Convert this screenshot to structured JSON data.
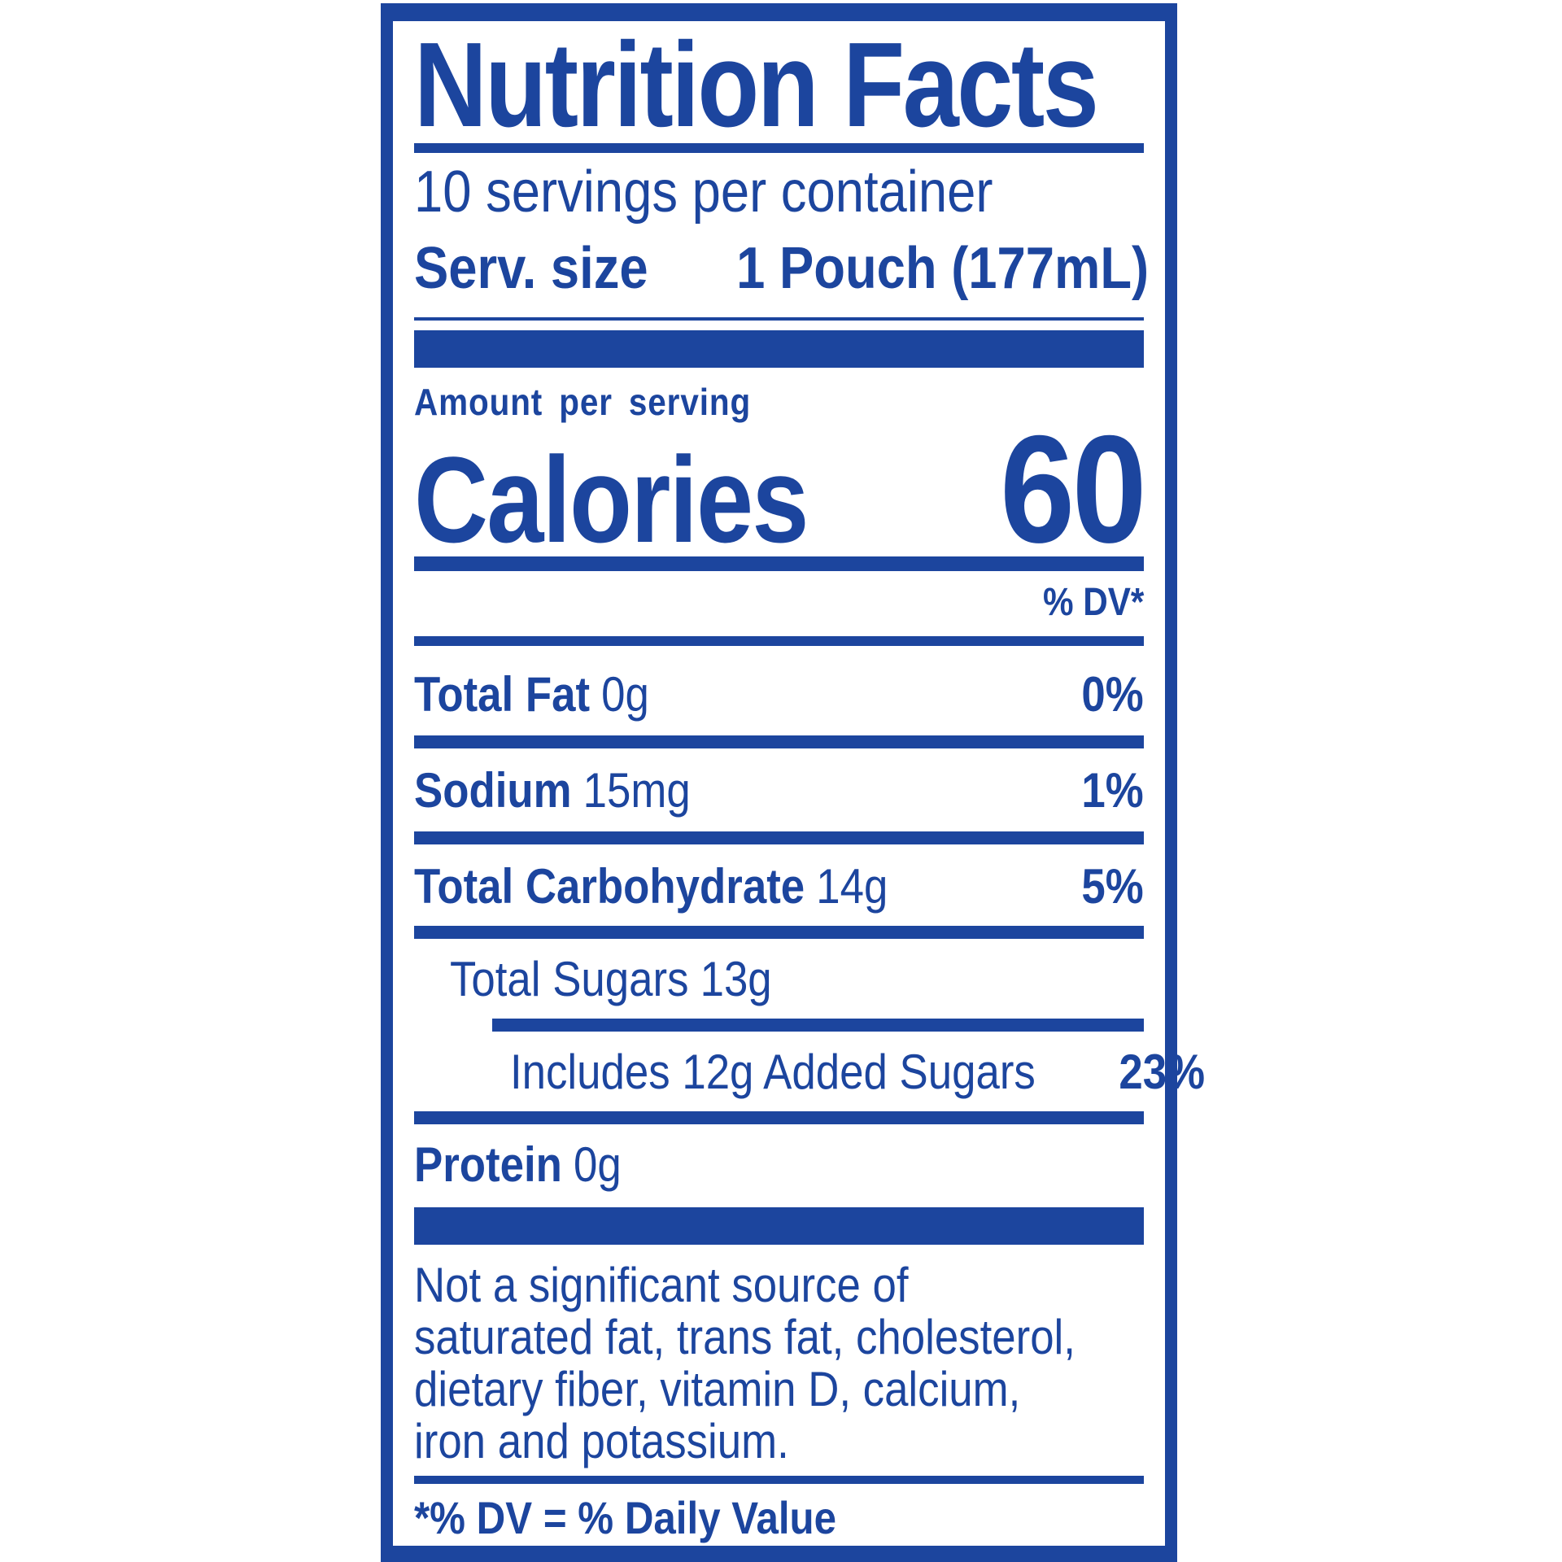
{
  "colors": {
    "brand_blue": "#1C459E",
    "background": "#FFFFFF"
  },
  "label": {
    "title": "Nutrition Facts",
    "servings_per_container": "10 servings per container",
    "serving_size_label": "Serv. size",
    "serving_size_value": "1 Pouch (177mL)",
    "amount_per_serving_label": "Amount per serving",
    "calories_label": "Calories",
    "calories_value": "60",
    "daily_value_header": "% DV*",
    "nutrients": [
      {
        "name": "Total Fat",
        "amount": "0g",
        "daily_value": "0%"
      },
      {
        "name": "Sodium",
        "amount": "15mg",
        "daily_value": "1%"
      },
      {
        "name": "Total Carbohydrate",
        "amount": "14g",
        "daily_value": "5%"
      },
      {
        "name": "Total Sugars",
        "amount": "13g",
        "daily_value": ""
      },
      {
        "name": "Includes 12g Added Sugars",
        "amount": "",
        "daily_value": "23%"
      },
      {
        "name": "Protein",
        "amount": "0g",
        "daily_value": ""
      }
    ],
    "disclaimer_lines": [
      "Not a significant source of",
      "saturated fat, trans fat, cholesterol,",
      "dietary fiber, vitamin D, calcium,",
      "iron and potassium."
    ],
    "footnote": "*% DV = % Daily Value"
  }
}
